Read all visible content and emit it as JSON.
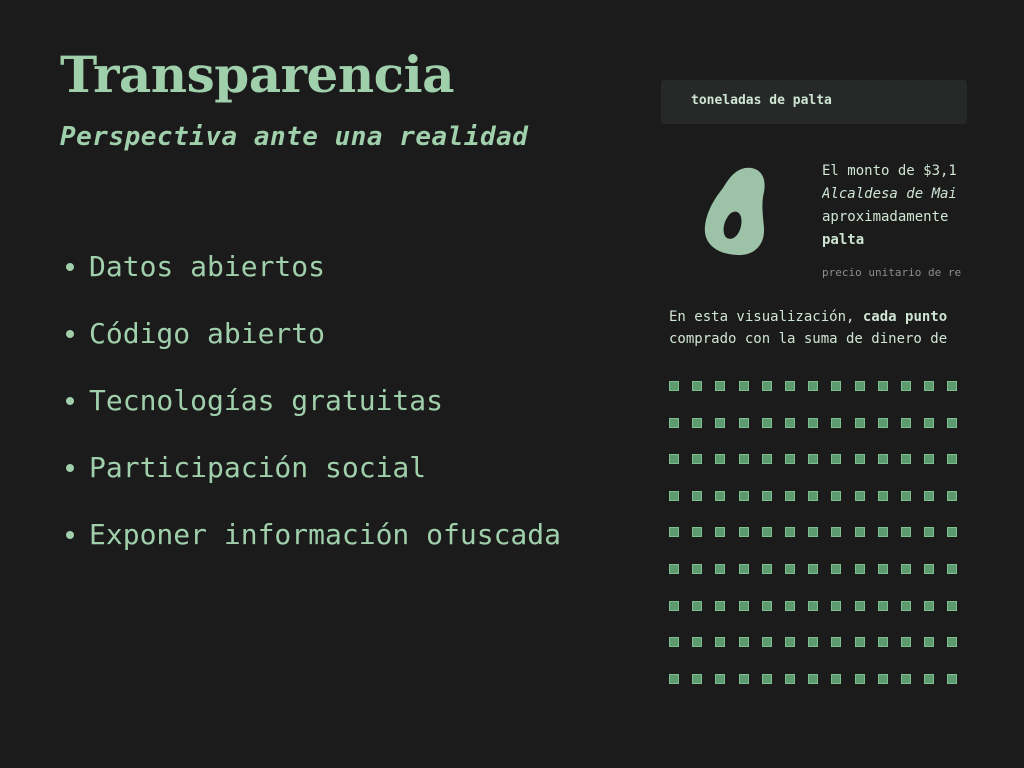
{
  "slide": {
    "title": "Transparencia",
    "subtitle": "Perspectiva ante una realidad",
    "bullets": [
      "Datos abiertos",
      "Código abierto",
      "Tecnologías gratuitas",
      "Participación social",
      "Exponer información ofuscada"
    ]
  },
  "panel": {
    "header_label": "toneladas de palta",
    "icon": "avocado-icon",
    "description": {
      "line1": "El monto de $3,1",
      "line2": "Alcaldesa de Mai",
      "line3": "aproximadamente",
      "line4": "palta"
    },
    "price_note": "precio unitario de re",
    "explanation": {
      "line1_prefix": "En esta visualización, ",
      "line1_bold": "cada punto",
      "line2": "comprado con la suma de dinero de"
    },
    "dot_grid": {
      "rows": 9,
      "columns": 13
    }
  },
  "colors": {
    "background": "#1b1b1b",
    "accent": "#9fcfab",
    "panel_text": "#cfe5d4",
    "header_bg": "#262927",
    "dot_fill": "#5e9a6f"
  }
}
